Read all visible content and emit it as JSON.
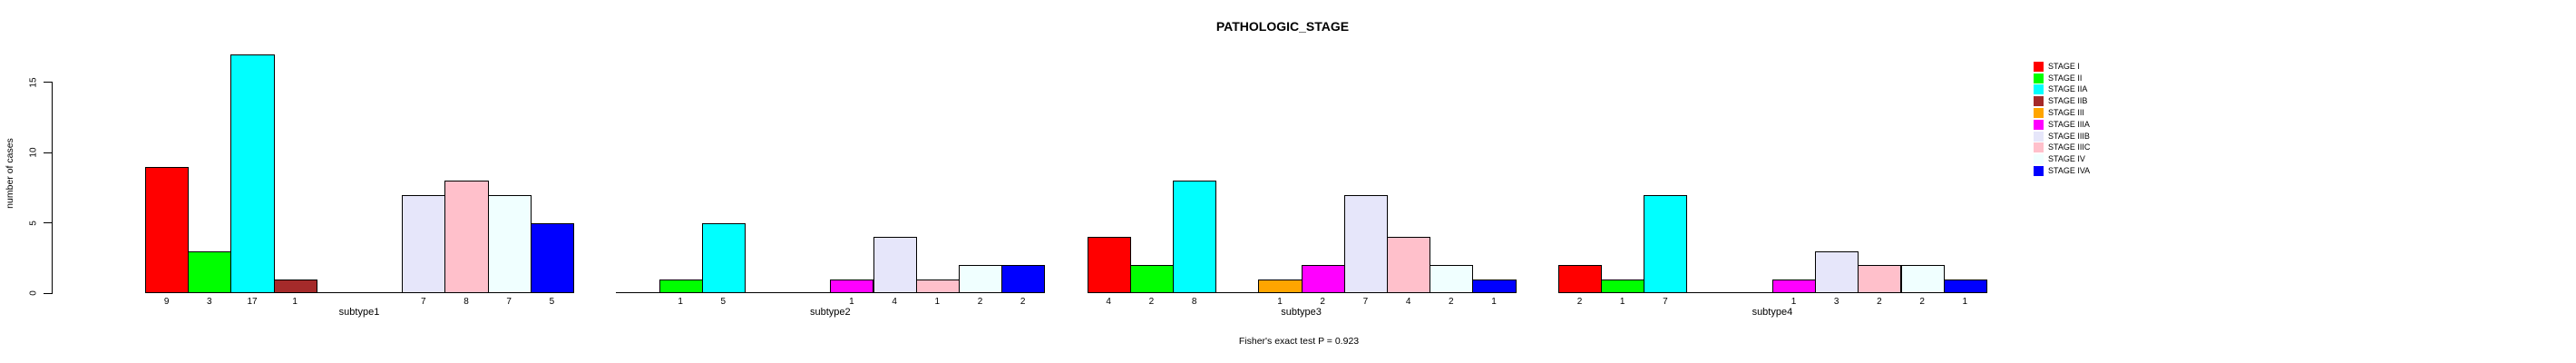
{
  "chart_data": {
    "type": "bar",
    "title": "PATHOLOGIC_STAGE",
    "ylabel": "number of cases",
    "xlabel": "",
    "caption": "Fisher's exact test P = 0.923",
    "categories": [
      "subtype1",
      "subtype2",
      "subtype3",
      "subtype4"
    ],
    "series": [
      {
        "name": "STAGE I",
        "color": "#FF0000",
        "values": [
          9,
          0,
          4,
          2
        ]
      },
      {
        "name": "STAGE II",
        "color": "#00FF00",
        "values": [
          3,
          1,
          2,
          1
        ]
      },
      {
        "name": "STAGE IIA",
        "color": "#00FFFF",
        "values": [
          17,
          5,
          8,
          7
        ]
      },
      {
        "name": "STAGE IIB",
        "color": "#A52A2A",
        "values": [
          1,
          0,
          0,
          0
        ]
      },
      {
        "name": "STAGE III",
        "color": "#FFA500",
        "values": [
          0,
          0,
          1,
          0
        ]
      },
      {
        "name": "STAGE IIIA",
        "color": "#FF00FF",
        "values": [
          0,
          1,
          2,
          1
        ]
      },
      {
        "name": "STAGE IIIB",
        "color": "#E6E6FA",
        "values": [
          7,
          4,
          7,
          3
        ]
      },
      {
        "name": "STAGE IIIC",
        "color": "#FFC0CB",
        "values": [
          8,
          1,
          4,
          2
        ]
      },
      {
        "name": "STAGE IV",
        "color": "#F0FFFF",
        "values": [
          7,
          2,
          2,
          2
        ]
      },
      {
        "name": "STAGE IVA",
        "color": "#0000FF",
        "values": [
          5,
          2,
          1,
          1
        ]
      }
    ],
    "bar_value_labels_shown": true,
    "zero_bars_drawn_as_flat_segments": true,
    "yticks": [
      0,
      5,
      10,
      15
    ],
    "ylim": [
      0,
      17.2
    ],
    "grid": false,
    "legend_position": "right",
    "axis_color": "#000000",
    "background_color": "#FFFFFF"
  }
}
